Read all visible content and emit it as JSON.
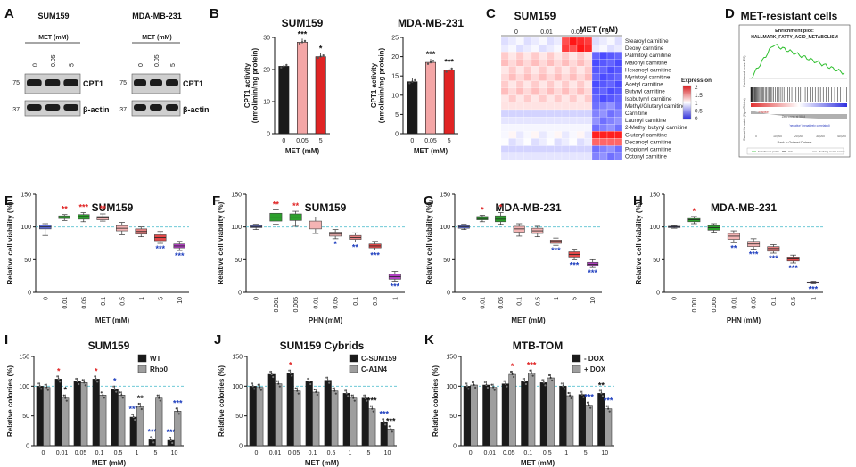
{
  "panel_letters": [
    "A",
    "B",
    "C",
    "D",
    "E",
    "F",
    "G",
    "H",
    "I",
    "J",
    "K"
  ],
  "colors": {
    "black": "#1a1a1a",
    "grey": "#9e9e9e",
    "pink": "#f4a6a6",
    "red": "#e02424",
    "blue_star": "#1f3fbf",
    "red_star": "#e02424",
    "green": "#2ca02c",
    "lightred": "#f4b4b4",
    "grey_box": "#bdbdbd",
    "cyan_dash": "#59c1d0"
  },
  "panel_A": {
    "blots": [
      {
        "title": "SUM159",
        "treatment_label": "MET (mM)",
        "lanes": [
          "0",
          "0.05",
          "5"
        ],
        "markers": [
          "75",
          "37"
        ],
        "bands": [
          "CPT1",
          "β-actin"
        ]
      },
      {
        "title": "MDA-MB-231",
        "treatment_label": "MET (mM)",
        "lanes": [
          "0",
          "0.05",
          "5"
        ],
        "markers": [
          "75",
          "37"
        ],
        "bands": [
          "CPT1",
          "β-actin"
        ]
      }
    ]
  },
  "panel_C": {
    "title": "SUM159",
    "treatment_label": "MET (mM)",
    "groups": [
      "0",
      "0.01",
      "0.05",
      "5"
    ],
    "legend_title": "Expression",
    "legend_ticks": [
      "2",
      "1.5",
      "1",
      "0.5",
      "0"
    ],
    "rows": [
      "Stearoyl carnitine",
      "Deoxy carnitine",
      "Palmitoyl carnitine",
      "Malonyl carnitine",
      "Hexanoyl carnitine",
      "Myristoyl carnitine",
      "Acetyl carnitine",
      "Butyryl carnitine",
      "Isobutyryl carnitine",
      "Methyl/Glutaryl carnitine",
      "Carnitine",
      "Lauroyl carnitine",
      "2-Methyl butyryl carnitine",
      "Glutaryl carnitine",
      "Decanoyl carnitine",
      "Propionyl carnitine",
      "Octonyl carnitine"
    ]
  },
  "panel_D": {
    "title": "MET-resistant cells",
    "plot_title": "Enrichment plot:",
    "gene_set": "HALLMARK_FATTY_ACID_METABOLISM",
    "ylabel_top": "Enrichment score (ES)",
    "ylabel_bottom": "Ranked list metric (Signal2Noise)",
    "xlabel": "Rank in Ordered Dataset",
    "bottom_ticks": [
      "0",
      "10,000",
      "20,000",
      "30,000",
      "40,000"
    ],
    "zero_cross_label": "Zero cross at 5844",
    "legend": [
      "Enrichment profile",
      "Hits",
      "Ranking metric scores"
    ],
    "pos_label": "'Positive'",
    "neg_label": "'negative' (negatively correlated)"
  },
  "chart_data": [
    {
      "id": "B1",
      "type": "bar",
      "title": "SUM159",
      "xlabel": "MET (mM)",
      "ylabel": "CPT1 activity\n(nmol/min/mg protein)",
      "ylim": [
        0,
        30
      ],
      "yticks": [
        0,
        10,
        20,
        30
      ],
      "categories": [
        "0",
        "0.05",
        "5"
      ],
      "values": [
        21,
        28.5,
        24
      ],
      "stars": [
        "",
        "***",
        "*"
      ]
    },
    {
      "id": "B2",
      "type": "bar",
      "title": "MDA-MB-231",
      "xlabel": "MET (mM)",
      "ylabel": "CPT1 activity\n(nmol/min/mg protein)",
      "ylim": [
        0,
        25
      ],
      "yticks": [
        0,
        5,
        10,
        15,
        20,
        25
      ],
      "categories": [
        "0",
        "0.05",
        "5"
      ],
      "values": [
        13.5,
        18.5,
        16.5
      ],
      "stars": [
        "",
        "***",
        "***"
      ]
    },
    {
      "id": "E",
      "type": "box",
      "title": "SUM159",
      "xlabel": "MET (mM)",
      "ylabel": "Relative cell viability (%)",
      "ylim": [
        0,
        150
      ],
      "yticks": [
        0,
        50,
        100,
        150
      ],
      "refline": 100,
      "categories": [
        "0",
        "0.01",
        "0.05",
        "0.1",
        "0.5",
        "1",
        "5",
        "10"
      ],
      "boxes": [
        [
          87,
          97,
          100,
          103,
          105
        ],
        [
          110,
          113,
          115,
          117,
          119
        ],
        [
          108,
          112,
          116,
          119,
          122
        ],
        [
          109,
          111,
          114,
          116,
          120
        ],
        [
          88,
          94,
          98,
          102,
          107
        ],
        [
          85,
          89,
          93,
          97,
          100
        ],
        [
          75,
          79,
          84,
          88,
          93
        ],
        [
          64,
          68,
          71,
          74,
          78
        ]
      ],
      "fills": [
        "#5b6bd6",
        "#2ca02c",
        "#2ca02c",
        "#f4b4b4",
        "#f4b4b4",
        "#e88080",
        "#e34848",
        "#b040c0"
      ],
      "stars": [
        {
          "t": "",
          "c": "red"
        },
        {
          "t": "**",
          "c": "red"
        },
        {
          "t": "***",
          "c": "red"
        },
        {
          "t": "**",
          "c": "red"
        },
        {
          "t": "",
          "c": "red"
        },
        {
          "t": "",
          "c": "red"
        },
        {
          "t": "***",
          "c": "blue"
        },
        {
          "t": "***",
          "c": "blue"
        }
      ]
    },
    {
      "id": "F",
      "type": "box",
      "title": "SUM159",
      "xlabel": "PHN (mM)",
      "ylabel": "Relative cell viability (%)",
      "ylim": [
        0,
        150
      ],
      "yticks": [
        0,
        50,
        100,
        150
      ],
      "refline": 100,
      "categories": [
        "0",
        "0.001",
        "0.005",
        "0.01",
        "0.05",
        "0.1",
        "0.5",
        "1"
      ],
      "boxes": [
        [
          96,
          99,
          100,
          102,
          104
        ],
        [
          104,
          109,
          115,
          121,
          126
        ],
        [
          101,
          110,
          115,
          120,
          124
        ],
        [
          90,
          97,
          103,
          109,
          115
        ],
        [
          82,
          86,
          89,
          92,
          96
        ],
        [
          77,
          81,
          84,
          87,
          91
        ],
        [
          65,
          68,
          71,
          74,
          78
        ],
        [
          17,
          20,
          24,
          28,
          32
        ]
      ],
      "fills": [
        "#5b6bd6",
        "#2ca02c",
        "#2ca02c",
        "#f4b4b4",
        "#f4b4b4",
        "#e88080",
        "#e34848",
        "#b040c0"
      ],
      "stars": [
        {
          "t": "",
          "c": "red"
        },
        {
          "t": "**",
          "c": "red"
        },
        {
          "t": "**",
          "c": "red"
        },
        {
          "t": "",
          "c": "red"
        },
        {
          "t": "*",
          "c": "blue"
        },
        {
          "t": "**",
          "c": "blue"
        },
        {
          "t": "***",
          "c": "blue"
        },
        {
          "t": "***",
          "c": "blue"
        }
      ]
    },
    {
      "id": "G",
      "type": "box",
      "title": "MDA-MB-231",
      "xlabel": "MET (mM)",
      "ylabel": "Relative cell viability (%)",
      "ylim": [
        0,
        150
      ],
      "yticks": [
        0,
        50,
        100,
        150
      ],
      "refline": 100,
      "categories": [
        "0",
        "0.01",
        "0.05",
        "0.1",
        "0.5",
        "1",
        "5",
        "10"
      ],
      "boxes": [
        [
          96,
          98,
          100,
          102,
          104
        ],
        [
          108,
          111,
          113,
          116,
          118
        ],
        [
          104,
          108,
          112,
          117,
          122
        ],
        [
          86,
          92,
          97,
          101,
          105
        ],
        [
          85,
          90,
          94,
          98,
          101
        ],
        [
          72,
          75,
          78,
          80,
          83
        ],
        [
          50,
          54,
          58,
          62,
          66
        ],
        [
          38,
          41,
          43,
          46,
          50
        ]
      ],
      "fills": [
        "#5b6bd6",
        "#2ca02c",
        "#2ca02c",
        "#f4b4b4",
        "#f4b4b4",
        "#e88080",
        "#e34848",
        "#b040c0"
      ],
      "stars": [
        {
          "t": "",
          "c": "red"
        },
        {
          "t": "*",
          "c": "red"
        },
        {
          "t": "*",
          "c": "red"
        },
        {
          "t": "",
          "c": "red"
        },
        {
          "t": "",
          "c": "red"
        },
        {
          "t": "***",
          "c": "blue"
        },
        {
          "t": "***",
          "c": "blue"
        },
        {
          "t": "***",
          "c": "blue"
        }
      ]
    },
    {
      "id": "H",
      "type": "box",
      "title": "MDA-MB-231",
      "xlabel": "PHN (mM)",
      "ylabel": "Relative cell viability (%)",
      "ylim": [
        0,
        150
      ],
      "yticks": [
        0,
        50,
        100,
        150
      ],
      "refline": 100,
      "categories": [
        "0",
        "0.001",
        "0.005",
        "0.01",
        "0.05",
        "0.1",
        "0.5",
        "1"
      ],
      "boxes": [
        [
          98,
          99,
          100,
          101,
          102
        ],
        [
          105,
          108,
          111,
          113,
          116
        ],
        [
          92,
          95,
          99,
          102,
          105
        ],
        [
          76,
          81,
          86,
          90,
          94
        ],
        [
          66,
          70,
          74,
          78,
          82
        ],
        [
          60,
          63,
          67,
          70,
          73
        ],
        [
          45,
          48,
          51,
          54,
          57
        ],
        [
          13,
          14,
          15,
          16,
          17
        ]
      ],
      "fills": [
        "#5b6bd6",
        "#2ca02c",
        "#2ca02c",
        "#f4b4b4",
        "#f4b4b4",
        "#e88080",
        "#e34848",
        "#b040c0"
      ],
      "stars": [
        {
          "t": "",
          "c": "red"
        },
        {
          "t": "*",
          "c": "red"
        },
        {
          "t": "",
          "c": "red"
        },
        {
          "t": "**",
          "c": "blue"
        },
        {
          "t": "***",
          "c": "blue"
        },
        {
          "t": "***",
          "c": "blue"
        },
        {
          "t": "***",
          "c": "blue"
        },
        {
          "t": "***",
          "c": "blue"
        }
      ]
    },
    {
      "id": "I",
      "type": "grouped_bar",
      "title": "SUM159",
      "xlabel": "MET (mM)",
      "ylabel": "Relative colonies (%)",
      "ylim": [
        0,
        150
      ],
      "yticks": [
        0,
        50,
        100,
        150
      ],
      "refline": 100,
      "categories": [
        "0",
        "0.01",
        "0.05",
        "0.1",
        "0.5",
        "1",
        "5",
        "10"
      ],
      "series": [
        {
          "name": "WT",
          "color": "#1a1a1a",
          "values": [
            100,
            112,
            108,
            112,
            95,
            48,
            10,
            9
          ]
        },
        {
          "name": "Rho0",
          "color": "#9e9e9e",
          "values": [
            98,
            80,
            106,
            85,
            85,
            66,
            80,
            58
          ]
        }
      ],
      "stars": [
        [
          "",
          ""
        ],
        [
          "*",
          "*"
        ],
        [
          "",
          ""
        ],
        [
          "*",
          ""
        ],
        [
          "*",
          ""
        ],
        [
          "***",
          "**"
        ],
        [
          "***",
          ""
        ],
        [
          "***",
          "***"
        ]
      ],
      "star_colors": [
        [
          "red",
          "red"
        ],
        [
          "red",
          "black"
        ],
        [
          "red",
          "red"
        ],
        [
          "red",
          "red"
        ],
        [
          "blue",
          "red"
        ],
        [
          "blue",
          "black"
        ],
        [
          "blue",
          "red"
        ],
        [
          "blue",
          "blue"
        ]
      ]
    },
    {
      "id": "J",
      "type": "grouped_bar",
      "title": "SUM159 Cybrids",
      "xlabel": "MET (mM)",
      "ylabel": "Relative colonies (%)",
      "ylim": [
        0,
        150
      ],
      "yticks": [
        0,
        50,
        100,
        150
      ],
      "refline": 100,
      "categories": [
        "0",
        "0.01",
        "0.05",
        "0.1",
        "0.5",
        "1",
        "5",
        "10"
      ],
      "series": [
        {
          "name": "C-SUM159",
          "color": "#1a1a1a",
          "values": [
            100,
            120,
            122,
            108,
            110,
            88,
            80,
            40
          ]
        },
        {
          "name": "C-A1N4",
          "color": "#9e9e9e",
          "values": [
            98,
            104,
            92,
            90,
            92,
            80,
            62,
            28
          ]
        }
      ],
      "stars": [
        [
          "",
          ""
        ],
        [
          "",
          ""
        ],
        [
          "*",
          ""
        ],
        [
          "",
          ""
        ],
        [
          "",
          ""
        ],
        [
          "",
          ""
        ],
        [
          "",
          "***"
        ],
        [
          "***",
          "***"
        ]
      ],
      "star_colors": [
        [
          "red",
          "red"
        ],
        [
          "red",
          "red"
        ],
        [
          "red",
          "red"
        ],
        [
          "red",
          "red"
        ],
        [
          "red",
          "red"
        ],
        [
          "red",
          "red"
        ],
        [
          "red",
          "black"
        ],
        [
          "blue",
          "black"
        ]
      ]
    },
    {
      "id": "K",
      "type": "grouped_bar",
      "title": "MTB-TOM",
      "xlabel": "MET (mM)",
      "ylabel": "Relative colonies (%)",
      "ylim": [
        0,
        150
      ],
      "yticks": [
        0,
        50,
        100,
        150
      ],
      "refline": 100,
      "categories": [
        "0",
        "0.01",
        "0.05",
        "0.1",
        "0.5",
        "1",
        "5",
        "10"
      ],
      "series": [
        {
          "name": "- DOX",
          "color": "#1a1a1a",
          "values": [
            100,
            102,
            104,
            108,
            106,
            100,
            86,
            88
          ]
        },
        {
          "name": "+ DOX",
          "color": "#9e9e9e",
          "values": [
            102,
            98,
            120,
            122,
            114,
            84,
            68,
            62
          ]
        }
      ],
      "stars": [
        [
          "",
          ""
        ],
        [
          "",
          ""
        ],
        [
          "",
          "*"
        ],
        [
          "",
          "***"
        ],
        [
          "",
          ""
        ],
        [
          "",
          ""
        ],
        [
          "",
          "***"
        ],
        [
          "**",
          "***"
        ]
      ],
      "star_colors": [
        [
          "red",
          "red"
        ],
        [
          "red",
          "red"
        ],
        [
          "red",
          "red"
        ],
        [
          "red",
          "red"
        ],
        [
          "red",
          "red"
        ],
        [
          "red",
          "red"
        ],
        [
          "red",
          "blue"
        ],
        [
          "black",
          "blue"
        ]
      ]
    }
  ]
}
